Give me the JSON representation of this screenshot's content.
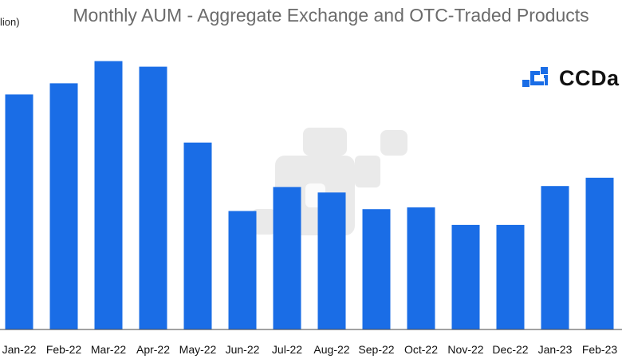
{
  "chart_data": {
    "type": "bar",
    "title": "Monthly AUM - Aggregate Exchange and OTC-Traded Products",
    "ylabel_visible": "lion)",
    "categories": [
      "Jan-22",
      "Feb-22",
      "Mar-22",
      "Apr-22",
      "May-22",
      "Jun-22",
      "Jul-22",
      "Aug-22",
      "Sep-22",
      "Oct-22",
      "Nov-22",
      "Dec-22",
      "Jan-23",
      "Feb-23"
    ],
    "values": [
      254,
      266,
      290,
      284,
      202,
      128,
      154,
      148,
      130,
      132,
      113,
      113,
      155,
      164
    ],
    "ylim": [
      0,
      300
    ],
    "grid": false,
    "legend": "none",
    "bar_color": "#1a6de6",
    "axis_color": "#444444"
  },
  "brand": {
    "text": "CCDa",
    "icon": "ccdata-logo-icon",
    "color": "#1a6de6"
  },
  "watermark": {
    "icon": "ccdata-watermark-icon",
    "color": "#d9d9d9"
  }
}
